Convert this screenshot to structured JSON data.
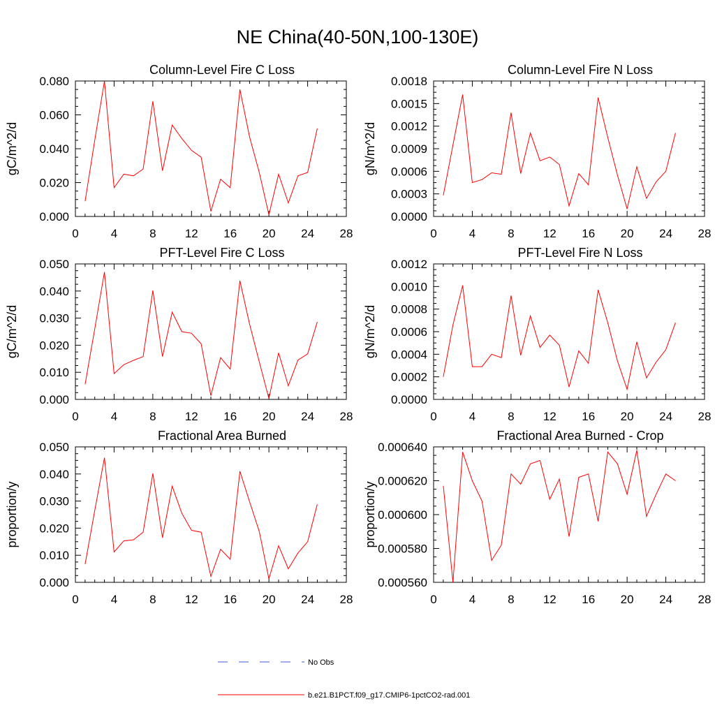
{
  "figure": {
    "title": "NE China(40-50N,100-130E)"
  },
  "legend": {
    "entries": [
      {
        "label": "No Obs",
        "color": "#3b5bdb",
        "style": "dashed"
      },
      {
        "label": "b.e21.B1PCT.f09_g17.CMIP6-1pctCO2-rad.001",
        "color": "#ff0000",
        "style": "solid"
      }
    ]
  },
  "chart_data": [
    {
      "type": "line",
      "title": "Column-Level Fire C Loss",
      "ylabel": "gC/m^2/d",
      "xlim": [
        0,
        28
      ],
      "xticks": [
        "0",
        "4",
        "8",
        "12",
        "16",
        "20",
        "24",
        "28"
      ],
      "ylim": [
        0,
        0.08
      ],
      "yticks": [
        "0.000",
        "0.020",
        "0.040",
        "0.060",
        "0.080"
      ],
      "series": [
        {
          "color": "#ff0000",
          "x": [
            1,
            2,
            3,
            4,
            5,
            6,
            7,
            8,
            9,
            10,
            11,
            12,
            13,
            14,
            15,
            16,
            17,
            18,
            19,
            20,
            21,
            22,
            23,
            24,
            25
          ],
          "values": [
            0.009,
            0.045,
            0.08,
            0.017,
            0.025,
            0.024,
            0.028,
            0.068,
            0.027,
            0.054,
            0.046,
            0.039,
            0.035,
            0.003,
            0.022,
            0.017,
            0.075,
            0.047,
            0.026,
            0.001,
            0.025,
            0.008,
            0.024,
            0.026,
            0.052
          ]
        }
      ]
    },
    {
      "type": "line",
      "title": "Column-Level Fire N Loss",
      "ylabel": "gN/m^2/d",
      "xlim": [
        0,
        28
      ],
      "xticks": [
        "0",
        "4",
        "8",
        "12",
        "16",
        "20",
        "24",
        "28"
      ],
      "ylim": [
        0,
        0.0018
      ],
      "yticks": [
        "0.0000",
        "0.0003",
        "0.0006",
        "0.0009",
        "0.0012",
        "0.0015",
        "0.0018"
      ],
      "series": [
        {
          "color": "#ff0000",
          "x": [
            1,
            2,
            3,
            4,
            5,
            6,
            7,
            8,
            9,
            10,
            11,
            12,
            13,
            14,
            15,
            16,
            17,
            18,
            19,
            20,
            21,
            22,
            23,
            24,
            25
          ],
          "values": [
            0.00028,
            0.00095,
            0.00162,
            0.00045,
            0.00049,
            0.00058,
            0.00056,
            0.00138,
            0.00057,
            0.00111,
            0.00074,
            0.00079,
            0.00069,
            0.00014,
            0.00057,
            0.00042,
            0.00158,
            0.00105,
            0.00055,
            0.0001,
            0.00066,
            0.00024,
            0.00046,
            0.0006,
            0.00111
          ]
        }
      ]
    },
    {
      "type": "line",
      "title": "PFT-Level Fire C Loss",
      "ylabel": "gC/m^2/d",
      "xlim": [
        0,
        28
      ],
      "xticks": [
        "0",
        "4",
        "8",
        "12",
        "16",
        "20",
        "24",
        "28"
      ],
      "ylim": [
        0,
        0.05
      ],
      "yticks": [
        "0.000",
        "0.010",
        "0.020",
        "0.030",
        "0.040",
        "0.050"
      ],
      "series": [
        {
          "color": "#ff0000",
          "x": [
            1,
            2,
            3,
            4,
            5,
            6,
            7,
            8,
            9,
            10,
            11,
            12,
            13,
            14,
            15,
            16,
            17,
            18,
            19,
            20,
            21,
            22,
            23,
            24,
            25
          ],
          "values": [
            0.0056,
            0.026,
            0.047,
            0.0095,
            0.0128,
            0.0144,
            0.0158,
            0.0402,
            0.0158,
            0.0322,
            0.025,
            0.0244,
            0.0205,
            0.0014,
            0.0154,
            0.0112,
            0.0438,
            0.0278,
            0.0139,
            0.0003,
            0.0172,
            0.005,
            0.0145,
            0.0168,
            0.0286
          ]
        }
      ]
    },
    {
      "type": "line",
      "title": "PFT-Level Fire N Loss",
      "ylabel": "gN/m^2/d",
      "xlim": [
        0,
        28
      ],
      "xticks": [
        "0",
        "4",
        "8",
        "12",
        "16",
        "20",
        "24",
        "28"
      ],
      "ylim": [
        0,
        0.0012
      ],
      "yticks": [
        "0.0000",
        "0.0002",
        "0.0004",
        "0.0006",
        "0.0008",
        "0.0010",
        "0.0012"
      ],
      "series": [
        {
          "color": "#ff0000",
          "x": [
            1,
            2,
            3,
            4,
            5,
            6,
            7,
            8,
            9,
            10,
            11,
            12,
            13,
            14,
            15,
            16,
            17,
            18,
            19,
            20,
            21,
            22,
            23,
            24,
            25
          ],
          "values": [
            0.0002,
            0.00066,
            0.00101,
            0.00029,
            0.00029,
            0.0004,
            0.00037,
            0.00092,
            0.00039,
            0.00074,
            0.00046,
            0.00057,
            0.00048,
            0.00011,
            0.00043,
            0.00032,
            0.00097,
            0.00068,
            0.00034,
            9e-05,
            0.00051,
            0.00019,
            0.00033,
            0.00044,
            0.00068
          ]
        }
      ]
    },
    {
      "type": "line",
      "title": "Fractional Area Burned",
      "ylabel": "proportion/y",
      "xlim": [
        0,
        28
      ],
      "xticks": [
        "0",
        "4",
        "8",
        "12",
        "16",
        "20",
        "24",
        "28"
      ],
      "ylim": [
        0,
        0.05
      ],
      "yticks": [
        "0.000",
        "0.010",
        "0.020",
        "0.030",
        "0.040",
        "0.050"
      ],
      "series": [
        {
          "color": "#ff0000",
          "x": [
            1,
            2,
            3,
            4,
            5,
            6,
            7,
            8,
            9,
            10,
            11,
            12,
            13,
            14,
            15,
            16,
            17,
            18,
            19,
            20,
            21,
            22,
            23,
            24,
            25
          ],
          "values": [
            0.0067,
            0.0265,
            0.046,
            0.0112,
            0.0153,
            0.0157,
            0.0185,
            0.0402,
            0.0165,
            0.0355,
            0.0255,
            0.0192,
            0.0185,
            0.0022,
            0.0122,
            0.0085,
            0.041,
            0.0298,
            0.0188,
            0.0013,
            0.0135,
            0.005,
            0.0108,
            0.015,
            0.0288
          ]
        }
      ]
    },
    {
      "type": "line",
      "title": "Fractional Area Burned - Crop",
      "ylabel": "proportion/y",
      "xlim": [
        0,
        28
      ],
      "xticks": [
        "0",
        "4",
        "8",
        "12",
        "16",
        "20",
        "24",
        "28"
      ],
      "ylim": [
        0.00056,
        0.00064
      ],
      "yticks": [
        "0.000560",
        "0.000580",
        "0.000600",
        "0.000620",
        "0.000640"
      ],
      "series": [
        {
          "color": "#ff0000",
          "x": [
            1,
            2,
            3,
            4,
            5,
            6,
            7,
            8,
            9,
            10,
            11,
            12,
            13,
            14,
            15,
            16,
            17,
            18,
            19,
            20,
            21,
            22,
            23,
            24,
            25
          ],
          "values": [
            0.000617,
            0.00056,
            0.000637,
            0.00062,
            0.000608,
            0.000573,
            0.000582,
            0.000624,
            0.000618,
            0.00063,
            0.000632,
            0.000609,
            0.000621,
            0.000587,
            0.000622,
            0.000624,
            0.000596,
            0.000637,
            0.00063,
            0.000612,
            0.000638,
            0.000599,
            0.000612,
            0.000624,
            0.00062
          ]
        }
      ]
    }
  ]
}
